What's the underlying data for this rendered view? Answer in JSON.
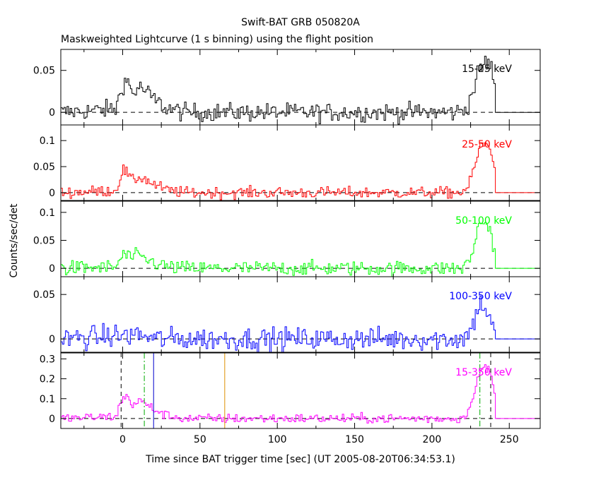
{
  "chart_data": {
    "type": "line",
    "title": "Swift-BAT GRB 050820A",
    "subtitle": "Maskweighted Lightcurve (1 s binning) using the flight position",
    "xlabel": "Time since BAT trigger time [sec] (UT 2005-08-20T06:34:53.1)",
    "ylabel": "Counts/sec/det",
    "xlim": [
      -40,
      270
    ],
    "x_ticks": [
      {
        "value": 0,
        "label": "0"
      },
      {
        "value": 50,
        "label": "50"
      },
      {
        "value": 100,
        "label": "100"
      },
      {
        "value": 150,
        "label": "150"
      },
      {
        "value": 200,
        "label": "200"
      },
      {
        "value": 250,
        "label": "250"
      }
    ],
    "panels": [
      {
        "name": "15-25 keV",
        "color": "#000000",
        "ylim": [
          -0.015,
          0.075
        ],
        "y_ticks": [
          {
            "value": 0,
            "label": "0"
          },
          {
            "value": 0.05,
            "label": "0.05"
          }
        ],
        "noise": 0.0055,
        "profile": [
          [
            -40,
            0.0
          ],
          [
            -5,
            0.004
          ],
          [
            0,
            0.035
          ],
          [
            3,
            0.037
          ],
          [
            6,
            0.022
          ],
          [
            10,
            0.03
          ],
          [
            14,
            0.026
          ],
          [
            20,
            0.015
          ],
          [
            28,
            0.005
          ],
          [
            40,
            0.0
          ],
          [
            215,
            0.0
          ],
          [
            222,
            0.005
          ],
          [
            226,
            0.025
          ],
          [
            230,
            0.05
          ],
          [
            234,
            0.06
          ],
          [
            238,
            0.055
          ],
          [
            240,
            0.03
          ],
          [
            241,
            0.0
          ]
        ]
      },
      {
        "name": "25-50 keV",
        "color": "#ff0000",
        "ylim": [
          -0.015,
          0.13
        ],
        "y_ticks": [
          {
            "value": 0,
            "label": "0"
          },
          {
            "value": 0.05,
            "label": "0.05"
          },
          {
            "value": 0.1,
            "label": "0.1"
          }
        ],
        "noise": 0.0055,
        "profile": [
          [
            -40,
            0.0
          ],
          [
            -5,
            0.004
          ],
          [
            0,
            0.045
          ],
          [
            3,
            0.035
          ],
          [
            6,
            0.022
          ],
          [
            10,
            0.03
          ],
          [
            14,
            0.026
          ],
          [
            20,
            0.015
          ],
          [
            28,
            0.005
          ],
          [
            40,
            0.0
          ],
          [
            218,
            0.0
          ],
          [
            223,
            0.01
          ],
          [
            227,
            0.05
          ],
          [
            231,
            0.09
          ],
          [
            234,
            0.095
          ],
          [
            238,
            0.08
          ],
          [
            240,
            0.05
          ],
          [
            241,
            0.0
          ]
        ]
      },
      {
        "name": "50-100 keV",
        "color": "#00ff00",
        "ylim": [
          -0.015,
          0.12
        ],
        "y_ticks": [
          {
            "value": 0,
            "label": "0"
          },
          {
            "value": 0.05,
            "label": "0.05"
          },
          {
            "value": 0.1,
            "label": "0.1"
          }
        ],
        "noise": 0.0065,
        "profile": [
          [
            -40,
            0.0
          ],
          [
            -5,
            0.002
          ],
          [
            0,
            0.025
          ],
          [
            5,
            0.02
          ],
          [
            10,
            0.022
          ],
          [
            15,
            0.015
          ],
          [
            22,
            0.008
          ],
          [
            30,
            0.002
          ],
          [
            40,
            0.0
          ],
          [
            220,
            0.0
          ],
          [
            225,
            0.02
          ],
          [
            229,
            0.07
          ],
          [
            233,
            0.085
          ],
          [
            237,
            0.07
          ],
          [
            240,
            0.03
          ],
          [
            241,
            0.0
          ]
        ]
      },
      {
        "name": "100-350 keV",
        "color": "#0000ff",
        "ylim": [
          -0.015,
          0.07
        ],
        "y_ticks": [
          {
            "value": 0,
            "label": "0"
          },
          {
            "value": 0.05,
            "label": "0.05"
          }
        ],
        "noise": 0.0065,
        "profile": [
          [
            -40,
            0.0
          ],
          [
            0,
            0.004
          ],
          [
            10,
            0.005
          ],
          [
            20,
            0.0
          ],
          [
            220,
            0.0
          ],
          [
            226,
            0.015
          ],
          [
            230,
            0.04
          ],
          [
            234,
            0.035
          ],
          [
            238,
            0.02
          ],
          [
            241,
            0.0
          ]
        ]
      },
      {
        "name": "15-350 keV",
        "color": "#ff00ff",
        "ylim": [
          -0.05,
          0.33
        ],
        "y_ticks": [
          {
            "value": 0,
            "label": "0"
          },
          {
            "value": 0.1,
            "label": "0.1"
          },
          {
            "value": 0.2,
            "label": "0.2"
          },
          {
            "value": 0.3,
            "label": "0.3"
          }
        ],
        "noise": 0.012,
        "profile": [
          [
            -40,
            0.0
          ],
          [
            -5,
            0.01
          ],
          [
            0,
            0.11
          ],
          [
            3,
            0.105
          ],
          [
            6,
            0.07
          ],
          [
            10,
            0.09
          ],
          [
            14,
            0.075
          ],
          [
            20,
            0.045
          ],
          [
            28,
            0.015
          ],
          [
            40,
            0.0
          ],
          [
            218,
            0.0
          ],
          [
            223,
            0.03
          ],
          [
            227,
            0.15
          ],
          [
            231,
            0.24
          ],
          [
            234,
            0.26
          ],
          [
            238,
            0.22
          ],
          [
            240,
            0.12
          ],
          [
            241,
            0.0
          ]
        ]
      }
    ],
    "markers": [
      {
        "x": -1,
        "color": "#000000",
        "style": "dashed"
      },
      {
        "x": 14,
        "color": "#00aa00",
        "style": "dashdot"
      },
      {
        "x": 20,
        "color": "#0000cc",
        "style": "solid"
      },
      {
        "x": 66,
        "color": "#dd9000",
        "style": "solid"
      },
      {
        "x": 231,
        "color": "#00aa00",
        "style": "dashdot"
      },
      {
        "x": 238,
        "color": "#000000",
        "style": "dashed"
      }
    ],
    "legend_position": "top-right inside each panel",
    "grid": false
  }
}
